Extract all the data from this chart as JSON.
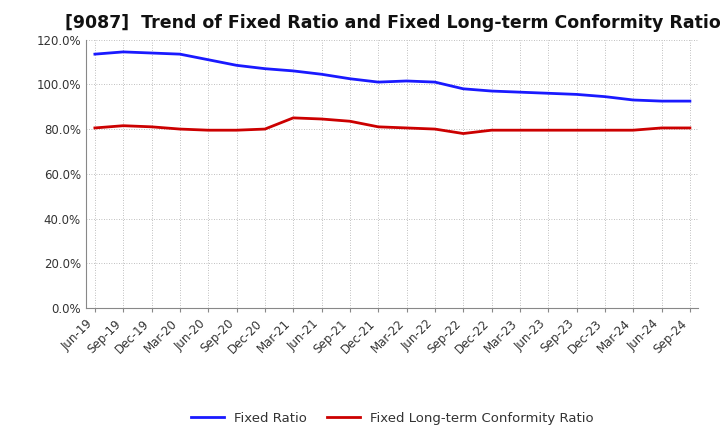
{
  "title": "[9087]  Trend of Fixed Ratio and Fixed Long-term Conformity Ratio",
  "x_labels": [
    "Jun-19",
    "Sep-19",
    "Dec-19",
    "Mar-20",
    "Jun-20",
    "Sep-20",
    "Dec-20",
    "Mar-21",
    "Jun-21",
    "Sep-21",
    "Dec-21",
    "Mar-22",
    "Jun-22",
    "Sep-22",
    "Dec-22",
    "Mar-23",
    "Jun-23",
    "Sep-23",
    "Dec-23",
    "Mar-24",
    "Jun-24",
    "Sep-24"
  ],
  "fixed_ratio": [
    113.5,
    114.5,
    114.0,
    113.5,
    111.0,
    108.5,
    107.0,
    106.0,
    104.5,
    102.5,
    101.0,
    101.5,
    101.0,
    98.0,
    97.0,
    96.5,
    96.0,
    95.5,
    94.5,
    93.0,
    92.5,
    92.5
  ],
  "fixed_lt_ratio": [
    80.5,
    81.5,
    81.0,
    80.0,
    79.5,
    79.5,
    80.0,
    85.0,
    84.5,
    83.5,
    81.0,
    80.5,
    80.0,
    78.0,
    79.5,
    79.5,
    79.5,
    79.5,
    79.5,
    79.5,
    80.5,
    80.5
  ],
  "ylim": [
    0,
    120
  ],
  "yticks": [
    0,
    20,
    40,
    60,
    80,
    100,
    120
  ],
  "yticklabels": [
    "0.0%",
    "20.0%",
    "40.0%",
    "60.0%",
    "80.0%",
    "100.0%",
    "120.0%"
  ],
  "line_color_blue": "#1a1aff",
  "line_color_red": "#cc0000",
  "line_width": 2.0,
  "legend_labels": [
    "Fixed Ratio",
    "Fixed Long-term Conformity Ratio"
  ],
  "bg_color": "#ffffff",
  "grid_color": "#aaaaaa",
  "title_fontsize": 12.5,
  "tick_fontsize": 8.5,
  "legend_fontsize": 9.5
}
